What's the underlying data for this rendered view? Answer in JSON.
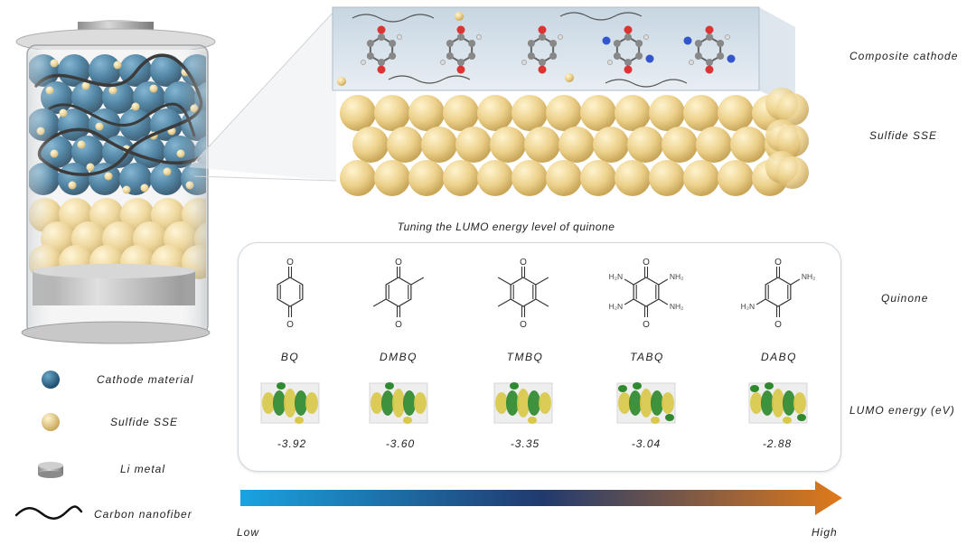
{
  "right_labels": {
    "composite_cathode": "Composite cathode",
    "sulfide_sse": "Sulfide SSE",
    "quinone": "Quinone",
    "lumo_energy": "LUMO energy (eV)"
  },
  "tuning_title": "Tuning the LUMO energy level of quinone",
  "legend": [
    {
      "label": "Cathode material",
      "icon": "blue-sphere-icon",
      "color": "#2f6f95"
    },
    {
      "label": "Sulfide SSE",
      "icon": "yellow-sphere-icon",
      "color": "#efd593"
    },
    {
      "label": "Li metal",
      "icon": "li-disc-icon",
      "color": "#9a9a9a"
    },
    {
      "label": "Carbon nanofiber",
      "icon": "wavy-line-icon",
      "color": "#111111"
    }
  ],
  "molecules": [
    {
      "name": "BQ",
      "energy": "-3.92"
    },
    {
      "name": "DMBQ",
      "energy": "-3.60"
    },
    {
      "name": "TMBQ",
      "energy": "-3.35"
    },
    {
      "name": "TABQ",
      "energy": "-3.04"
    },
    {
      "name": "DABQ",
      "energy": "-2.88"
    }
  ],
  "structure_labels": {
    "oxygen": "O",
    "amine": "H₂N",
    "amine_right": "NH₂"
  },
  "arrow": {
    "low": "Low",
    "high": "High",
    "color_start": "#1aa3e0",
    "color_mid": "#203a6e",
    "color_end": "#e07a1a"
  }
}
